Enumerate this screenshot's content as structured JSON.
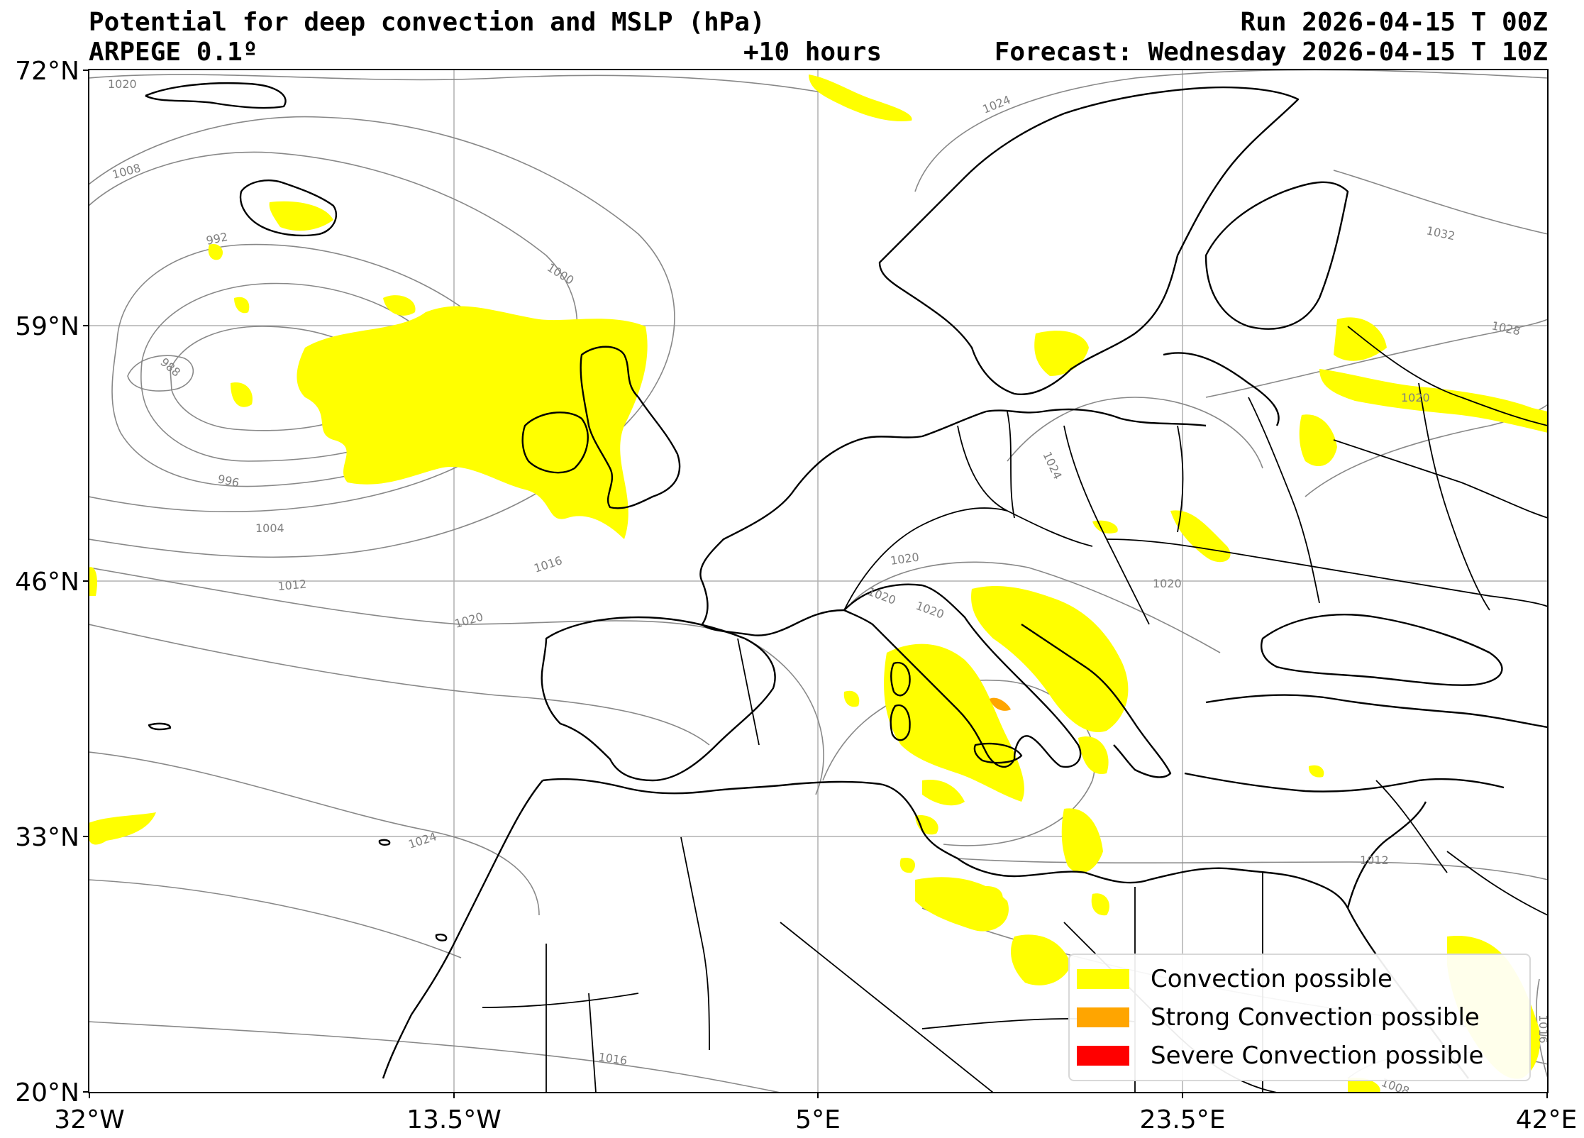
{
  "header": {
    "title": "Potential for deep convection and MSLP (hPa)",
    "run": "Run 2026-04-15 T 00Z",
    "model": "ARPEGE 0.1º",
    "lead": "+10 hours",
    "forecast": "Forecast: Wednesday 2026-04-15 T 10Z"
  },
  "axes": {
    "lat_ticks": [
      "72°N",
      "59°N",
      "46°N",
      "33°N",
      "20°N"
    ],
    "lon_ticks": [
      "32°W",
      "13.5°W",
      "5°E",
      "23.5°E",
      "42°E"
    ],
    "lat_range": [
      20,
      72
    ],
    "lon_range": [
      -32,
      42
    ],
    "grid": true
  },
  "isobar_labels": [
    "1020",
    "1024",
    "1008",
    "992",
    "1000",
    "988",
    "996",
    "1004",
    "1016",
    "1012",
    "1020",
    "1024",
    "1028",
    "1020",
    "1024",
    "1020",
    "1020",
    "1020",
    "1020",
    "1012",
    "1016",
    "1016",
    "1008",
    "1032"
  ],
  "legend": {
    "items": [
      {
        "label": "Convection possible",
        "color": "#ffff00"
      },
      {
        "label": "Strong Convection possible",
        "color": "#ffa500"
      },
      {
        "label": "Severe Convection possible",
        "color": "#ff0000"
      }
    ]
  },
  "colors": {
    "convection": "#ffff00",
    "strong": "#ffa500",
    "severe": "#ff0000",
    "isobar": "#888888",
    "coast": "#000000",
    "grid": "#b0b0b0"
  }
}
